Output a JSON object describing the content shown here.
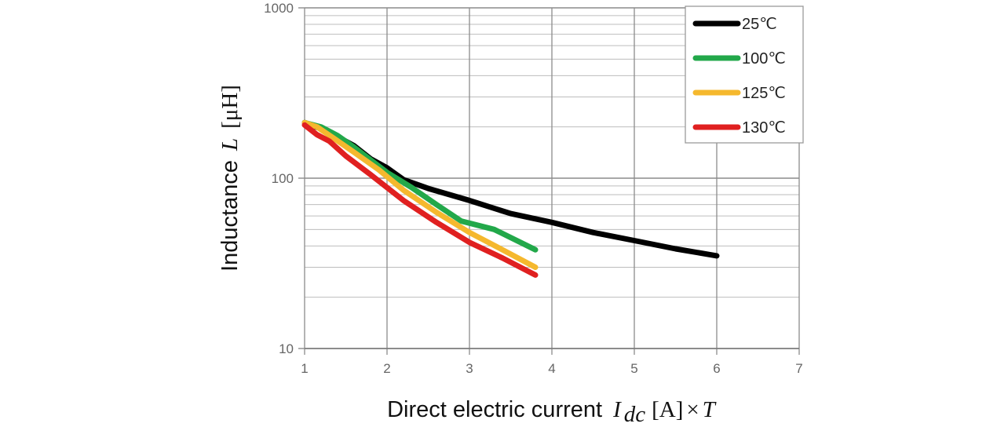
{
  "chart_data": {
    "type": "line",
    "title": "",
    "xlabel": {
      "text": "Direct electric current",
      "variable": "I",
      "subscript": "dc",
      "unit": "[A]",
      "operator": "×",
      "factor": "T"
    },
    "ylabel": {
      "text": "Inductance",
      "variable": "L",
      "unit": "[μH]"
    },
    "xlim": [
      1,
      7
    ],
    "ylim": [
      10,
      1000
    ],
    "yscale": "log",
    "grid": true,
    "legend_position": "top-right",
    "x_ticks": [
      "1",
      "2",
      "3",
      "4",
      "5",
      "6",
      "7"
    ],
    "y_ticks": [
      "10",
      "100",
      "1000"
    ],
    "series": [
      {
        "name": "25℃",
        "color": "#000000",
        "points": [
          [
            1.0,
            212
          ],
          [
            1.2,
            195
          ],
          [
            1.4,
            175
          ],
          [
            1.6,
            155
          ],
          [
            1.8,
            130
          ],
          [
            2.0,
            115
          ],
          [
            2.2,
            98
          ],
          [
            2.5,
            87
          ],
          [
            3.0,
            74
          ],
          [
            3.5,
            62
          ],
          [
            4.0,
            55
          ],
          [
            4.5,
            48
          ],
          [
            5.0,
            43
          ],
          [
            5.5,
            38.5
          ],
          [
            6.0,
            35
          ]
        ]
      },
      {
        "name": "100℃",
        "color": "#22a84a",
        "points": [
          [
            1.0,
            212
          ],
          [
            1.2,
            200
          ],
          [
            1.4,
            178
          ],
          [
            1.6,
            152
          ],
          [
            1.8,
            128
          ],
          [
            2.0,
            108
          ],
          [
            2.3,
            88
          ],
          [
            2.6,
            70
          ],
          [
            2.9,
            56
          ],
          [
            3.3,
            50
          ],
          [
            3.8,
            38
          ]
        ]
      },
      {
        "name": "125℃",
        "color": "#f5b82e",
        "points": [
          [
            1.0,
            212
          ],
          [
            1.15,
            200
          ],
          [
            1.35,
            172
          ],
          [
            1.6,
            142
          ],
          [
            1.9,
            112
          ],
          [
            2.2,
            85
          ],
          [
            2.6,
            63
          ],
          [
            3.0,
            48
          ],
          [
            3.4,
            38
          ],
          [
            3.8,
            30
          ]
        ]
      },
      {
        "name": "130℃",
        "color": "#e02020",
        "points": [
          [
            1.0,
            205
          ],
          [
            1.15,
            180
          ],
          [
            1.3,
            165
          ],
          [
            1.5,
            135
          ],
          [
            1.8,
            105
          ],
          [
            2.2,
            74
          ],
          [
            2.6,
            55
          ],
          [
            3.0,
            42
          ],
          [
            3.4,
            34
          ],
          [
            3.8,
            27
          ]
        ]
      }
    ]
  }
}
